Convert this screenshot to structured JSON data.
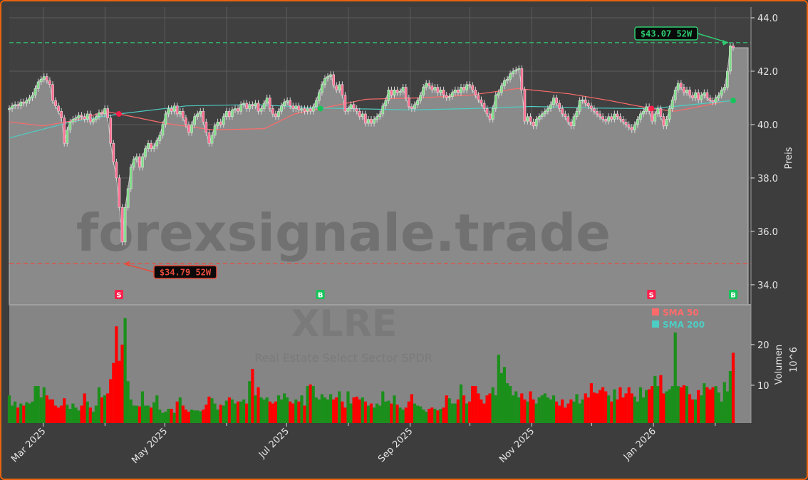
{
  "chart_data": [
    {
      "type": "candlestick",
      "ticker": "XLRE",
      "subtitle": "Real Estate Select Sector SPDR",
      "watermark": "forexsignale.trade",
      "ylabel": "Preis",
      "ylim": [
        33.25,
        44.4
      ],
      "yticks": [
        "34.0",
        "36.0",
        "38.0",
        "40.0",
        "42.0",
        "44.0"
      ],
      "x_range": [
        "2025-02-12",
        "2026-02-10"
      ],
      "xticks_major": [
        {
          "date": "2025-03-01",
          "label": "Mar 2025"
        },
        {
          "date": "2025-05-01",
          "label": "May 2025"
        },
        {
          "date": "2025-07-01",
          "label": "Jul 2025"
        },
        {
          "date": "2025-09-01",
          "label": "Sep 2025"
        },
        {
          "date": "2025-11-01",
          "label": "Nov 2025"
        },
        {
          "date": "2026-01-01",
          "label": "Jan 2026"
        }
      ],
      "xticks_minor": [
        "2025-04-01",
        "2025-06-01",
        "2025-08-01",
        "2025-10-01",
        "2025-12-01",
        "2026-02-01"
      ],
      "grid": true,
      "close": [
        40.6,
        40.7,
        40.75,
        40.7,
        40.85,
        40.8,
        40.9,
        41.0,
        41.1,
        41.35,
        41.6,
        41.7,
        41.8,
        41.65,
        41.5,
        40.9,
        40.7,
        40.5,
        40.25,
        39.3,
        39.8,
        40.1,
        40.2,
        40.25,
        40.35,
        40.3,
        40.2,
        40.4,
        40.1,
        40.2,
        40.3,
        40.45,
        40.4,
        40.6,
        40.25,
        39.3,
        38.6,
        38.0,
        36.9,
        35.6,
        36.9,
        37.6,
        38.4,
        38.7,
        38.8,
        38.4,
        38.8,
        39.1,
        39.3,
        39.1,
        39.2,
        39.4,
        39.6,
        40.0,
        40.4,
        40.6,
        40.5,
        40.7,
        40.4,
        40.5,
        40.25,
        40.0,
        39.7,
        40.0,
        40.3,
        40.4,
        40.5,
        40.1,
        39.7,
        39.3,
        39.6,
        39.95,
        40.1,
        40.0,
        40.3,
        40.5,
        40.3,
        40.55,
        40.6,
        40.5,
        40.75,
        40.8,
        40.6,
        40.75,
        40.7,
        40.8,
        40.5,
        40.6,
        40.8,
        41.0,
        40.6,
        40.4,
        40.3,
        40.5,
        40.7,
        40.85,
        40.9,
        40.7,
        40.6,
        40.7,
        40.55,
        40.6,
        40.5,
        40.6,
        40.5,
        40.67,
        40.9,
        41.2,
        41.5,
        41.73,
        41.8,
        41.87,
        41.47,
        41.3,
        41.5,
        41.1,
        40.5,
        40.6,
        40.75,
        40.6,
        40.5,
        40.3,
        40.4,
        40.05,
        40.2,
        40.05,
        40.2,
        40.3,
        40.4,
        40.7,
        40.9,
        41.3,
        41.1,
        41.3,
        41.2,
        41.25,
        41.4,
        41.0,
        40.67,
        40.6,
        40.75,
        40.9,
        41.1,
        41.4,
        41.55,
        41.45,
        41.3,
        41.4,
        41.2,
        41.3,
        41.1,
        41.0,
        41.05,
        41.2,
        41.3,
        41.2,
        41.4,
        41.3,
        41.5,
        41.47,
        41.3,
        41.1,
        40.93,
        40.8,
        40.6,
        40.4,
        40.2,
        40.6,
        41.1,
        41.2,
        41.45,
        41.65,
        41.7,
        41.9,
        42.0,
        42.05,
        42.1,
        41.3,
        40.13,
        40.3,
        40.1,
        39.95,
        40.2,
        40.3,
        40.4,
        40.5,
        40.6,
        40.75,
        41.0,
        40.8,
        40.6,
        40.4,
        40.3,
        40.1,
        39.95,
        40.3,
        40.5,
        40.9,
        40.93,
        40.8,
        40.7,
        40.6,
        40.5,
        40.4,
        40.3,
        40.2,
        40.13,
        40.3,
        40.2,
        40.4,
        40.3,
        40.2,
        40.1,
        40.0,
        39.9,
        39.8,
        40.0,
        40.2,
        40.4,
        40.5,
        40.67,
        40.5,
        40.13,
        40.4,
        40.6,
        40.3,
        39.95,
        40.2,
        40.6,
        40.93,
        41.3,
        41.55,
        41.4,
        41.2,
        41.3,
        41.1,
        41.0,
        41.2,
        40.93,
        41.1,
        41.2,
        41.0,
        40.9,
        40.85,
        41.0,
        41.1,
        41.3,
        41.4,
        42.0,
        42.95,
        42.88
      ],
      "sma": [
        {
          "name": "SMA 50",
          "color": "#ff6b6b",
          "points": [
            [
              "2025-02-12",
              40.1
            ],
            [
              "2025-03-01",
              39.95
            ],
            [
              "2025-03-20",
              40.2
            ],
            [
              "2025-04-01",
              40.5
            ],
            [
              "2025-04-08",
              40.4
            ],
            [
              "2025-05-01",
              40.05
            ],
            [
              "2025-05-25",
              39.8
            ],
            [
              "2025-06-20",
              39.85
            ],
            [
              "2025-07-05",
              40.4
            ],
            [
              "2025-07-18",
              40.6
            ],
            [
              "2025-08-10",
              40.95
            ],
            [
              "2025-09-05",
              41.0
            ],
            [
              "2025-10-01",
              41.1
            ],
            [
              "2025-10-25",
              41.35
            ],
            [
              "2025-11-20",
              41.15
            ],
            [
              "2025-12-10",
              40.9
            ],
            [
              "2025-12-31",
              40.6
            ],
            [
              "2026-01-12",
              40.5
            ],
            [
              "2026-02-05",
              40.85
            ]
          ]
        },
        {
          "name": "SMA 200",
          "color": "#4ecdc4",
          "points": [
            [
              "2025-02-12",
              39.5
            ],
            [
              "2025-03-15",
              40.1
            ],
            [
              "2025-04-08",
              40.4
            ],
            [
              "2025-05-12",
              40.7
            ],
            [
              "2025-06-15",
              40.75
            ],
            [
              "2025-07-18",
              40.62
            ],
            [
              "2025-09-01",
              40.55
            ],
            [
              "2025-10-01",
              40.6
            ],
            [
              "2025-11-01",
              40.68
            ],
            [
              "2025-12-01",
              40.62
            ],
            [
              "2025-12-31",
              40.6
            ],
            [
              "2026-02-10",
              40.9
            ]
          ]
        }
      ],
      "signals": [
        {
          "date": "2025-04-08",
          "type": "S",
          "price": 40.4,
          "color": "#ff1f4b"
        },
        {
          "date": "2025-07-18",
          "type": "B",
          "price": 40.6,
          "color": "#16c45a"
        },
        {
          "date": "2025-12-31",
          "type": "S",
          "price": 40.6,
          "color": "#ff1f4b"
        },
        {
          "date": "2026-02-10",
          "type": "B",
          "price": 40.9,
          "color": "#16c45a"
        }
      ],
      "high_52w": {
        "value": 43.07,
        "label": "$43.07 52W",
        "color": "#2ecc71"
      },
      "low_52w": {
        "value": 34.79,
        "label": "$34.79 52W",
        "color": "#e74c3c"
      },
      "legend": {
        "placement": "inside-top-right",
        "items": [
          "SMA 50",
          "SMA 200"
        ]
      },
      "colors": {
        "up": "#7fdc86",
        "down": "#ff6f91",
        "area": "#8a8a8a",
        "background": "#404040"
      }
    },
    {
      "type": "bar",
      "ylabel": "Volumen",
      "yunit": "10^6",
      "ylim": [
        0.7,
        29.8
      ],
      "yticks": [
        "10",
        "20"
      ],
      "volume": [
        7.5,
        5,
        6,
        4.5,
        5.5,
        5,
        5.8,
        5.5,
        6,
        9.8,
        9.8,
        7,
        9.5,
        7.5,
        6.5,
        6.5,
        5,
        4.5,
        5,
        6.8,
        5.2,
        4.2,
        5.5,
        4.5,
        3.8,
        5,
        8,
        6,
        4.5,
        3.5,
        5,
        9.5,
        7,
        7.5,
        8,
        11.5,
        15.5,
        24.5,
        16,
        20,
        26.5,
        11,
        6.5,
        5,
        5,
        4.8,
        8.5,
        5,
        5,
        4.5,
        5.8,
        7.5,
        4,
        3.2,
        3.5,
        4.2,
        4.2,
        3.2,
        6,
        7,
        5,
        4,
        3.5,
        4,
        3.8,
        3.8,
        3.6,
        4,
        5.2,
        7.2,
        6.8,
        5.5,
        4,
        5.2,
        5,
        6.2,
        7,
        6.5,
        5.5,
        6,
        6,
        6.5,
        5.5,
        11,
        14,
        7.5,
        9.5,
        7,
        6.5,
        7,
        6,
        5.5,
        6,
        7.5,
        6.5,
        8,
        7,
        6,
        5.5,
        6.5,
        6,
        7.5,
        5,
        9.8,
        10.2,
        9.8,
        7,
        6.5,
        7.8,
        7,
        6.5,
        7.8,
        6.5,
        7,
        8.5,
        6,
        4.5,
        8.5,
        5.5,
        7,
        7.2,
        6.5,
        7,
        6,
        5,
        5.5,
        4.5,
        5.5,
        5,
        8.5,
        6,
        6.2,
        5.5,
        7.5,
        5.2,
        4.5,
        4,
        4.5,
        6,
        7.8,
        5.5,
        5,
        4.8,
        4,
        3.5,
        4.2,
        4.5,
        4.2,
        3.8,
        4.2,
        4.5,
        7.5,
        6.8,
        5.5,
        5.5,
        6.5,
        10.2,
        7.5,
        5.5,
        6,
        9.8,
        9.8,
        8,
        6.5,
        5.5,
        7.5,
        8,
        9.5,
        7.5,
        17.5,
        13,
        14.5,
        10.5,
        9.8,
        7.5,
        8.5,
        7,
        8,
        6.5,
        6,
        8.5,
        6.5,
        5.5,
        7,
        7.5,
        8,
        7,
        6.5,
        7.5,
        6,
        5,
        6.5,
        4.5,
        5.5,
        6.5,
        6,
        7.8,
        5.5,
        6.5,
        8,
        7,
        10.5,
        8.2,
        8,
        8.8,
        9.5,
        8.5,
        7.5,
        6,
        9,
        6.5,
        9.5,
        7,
        8,
        9.5,
        8,
        7.2,
        6,
        9.5,
        7,
        8.8,
        9,
        9.8,
        12.3,
        9.8,
        12.5,
        8,
        8.5,
        9,
        9.8,
        23,
        9.8,
        9.5,
        10,
        9.8,
        7.8,
        6.5,
        6.5,
        8.8,
        7.5,
        10.5,
        9.5,
        9,
        9.5,
        9.8,
        8.2,
        6,
        10.8,
        8.5,
        13.5,
        18
      ],
      "colors": {
        "up": "#1a8f1a",
        "down": "#ff0000",
        "background": "#858585"
      }
    }
  ]
}
